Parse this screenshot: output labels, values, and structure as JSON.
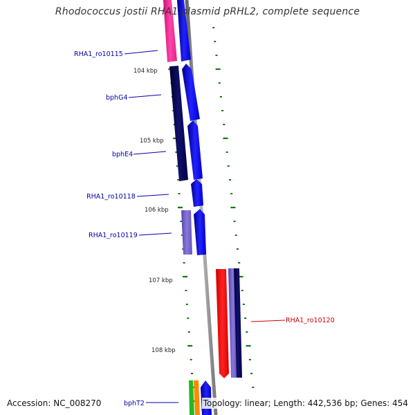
{
  "title": "Rhodococcus jostii RHA1 plasmid pRHL2, complete sequence",
  "accession_label": "Accession: NC_008270",
  "summary_label": "Topology: linear; Length: 442,536 bp; Genes: 454",
  "kbp_labels": [
    "104 kbp",
    "105 kbp",
    "106 kbp",
    "107 kbp",
    "108 kbp"
  ],
  "gene_labels": {
    "ro10115": "RHA1_ro10115",
    "bphG4": "bphG4",
    "bphE4": "bphE4",
    "ro10118": "RHA1_ro10118",
    "ro10119": "RHA1_ro10119",
    "ro10120": "RHA1_ro10120",
    "bphT2": "bphT2"
  },
  "colors": {
    "label_blue": "#0000aa",
    "label_red": "#cc0000",
    "tick_green": "#117711",
    "backbone": "#888888",
    "blue": "#0000ff",
    "navy": "#000066",
    "magenta": "#ff2fa0",
    "lavender": "#7766cc",
    "red": "#ff0000",
    "green": "#22bb22",
    "orange": "#ff8800"
  }
}
